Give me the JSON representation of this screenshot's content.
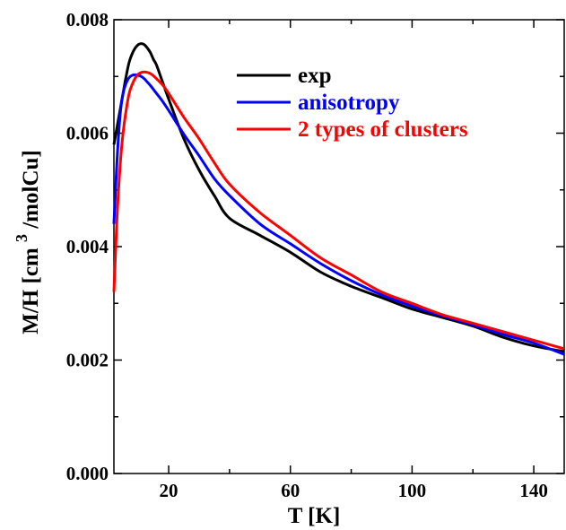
{
  "chart_data": {
    "type": "line",
    "xlabel": "T [K]",
    "ylabel": {
      "main": "M/H [cm",
      "superscript": "3",
      "rest": "/molCu]"
    },
    "xlim": [
      2,
      150
    ],
    "ylim": [
      0.0,
      0.008
    ],
    "x_ticks": [
      "20",
      "60",
      "100",
      "140"
    ],
    "y_ticks": [
      "0.000",
      "0.002",
      "0.004",
      "0.006",
      "0.008"
    ],
    "legend_position": "top-right",
    "grid": false,
    "series": [
      {
        "name": "exp",
        "color": "#000000",
        "x": [
          2,
          3,
          4,
          5,
          6,
          7,
          8,
          9,
          10,
          11,
          12,
          13,
          14,
          15,
          16,
          18,
          20,
          25,
          30,
          35,
          40,
          50,
          60,
          70,
          80,
          90,
          100,
          110,
          120,
          130,
          140,
          150
        ],
        "y": [
          0.0058,
          0.0061,
          0.0064,
          0.0067,
          0.007,
          0.00725,
          0.0074,
          0.0075,
          0.00756,
          0.00758,
          0.00756,
          0.0075,
          0.00742,
          0.0073,
          0.0072,
          0.0069,
          0.0066,
          0.0059,
          0.00535,
          0.0049,
          0.0045,
          0.0042,
          0.0039,
          0.00355,
          0.0033,
          0.0031,
          0.0029,
          0.00275,
          0.0026,
          0.0024,
          0.00225,
          0.00215
        ]
      },
      {
        "name": "anisotropy",
        "color": "#0000ff",
        "x": [
          2,
          3,
          4,
          5,
          6,
          7,
          8,
          9,
          10,
          11,
          12,
          13,
          14,
          15,
          16,
          18,
          20,
          25,
          30,
          35,
          40,
          50,
          60,
          70,
          80,
          90,
          100,
          110,
          120,
          130,
          140,
          150
        ],
        "y": [
          0.0044,
          0.0055,
          0.0063,
          0.0067,
          0.00688,
          0.00698,
          0.00702,
          0.00703,
          0.00702,
          0.007,
          0.00696,
          0.0069,
          0.00684,
          0.00677,
          0.0067,
          0.00656,
          0.0064,
          0.00598,
          0.0056,
          0.0052,
          0.0049,
          0.0044,
          0.00405,
          0.0037,
          0.0034,
          0.00315,
          0.00295,
          0.00278,
          0.00262,
          0.00245,
          0.0023,
          0.0021
        ]
      },
      {
        "name": "2 types of clusters",
        "color": "#ff0000",
        "x": [
          2,
          3,
          4,
          5,
          6,
          7,
          8,
          9,
          10,
          11,
          12,
          13,
          14,
          15,
          16,
          18,
          20,
          25,
          30,
          35,
          40,
          50,
          60,
          70,
          80,
          90,
          100,
          110,
          120,
          130,
          140,
          150
        ],
        "y": [
          0.0032,
          0.0045,
          0.0054,
          0.006,
          0.0064,
          0.0067,
          0.00686,
          0.00697,
          0.00704,
          0.00707,
          0.00708,
          0.00707,
          0.00705,
          0.00701,
          0.00696,
          0.00685,
          0.0067,
          0.00628,
          0.0059,
          0.00548,
          0.0051,
          0.0046,
          0.0042,
          0.0038,
          0.0035,
          0.0032,
          0.003,
          0.0028,
          0.00265,
          0.0025,
          0.00235,
          0.0022
        ]
      }
    ]
  }
}
